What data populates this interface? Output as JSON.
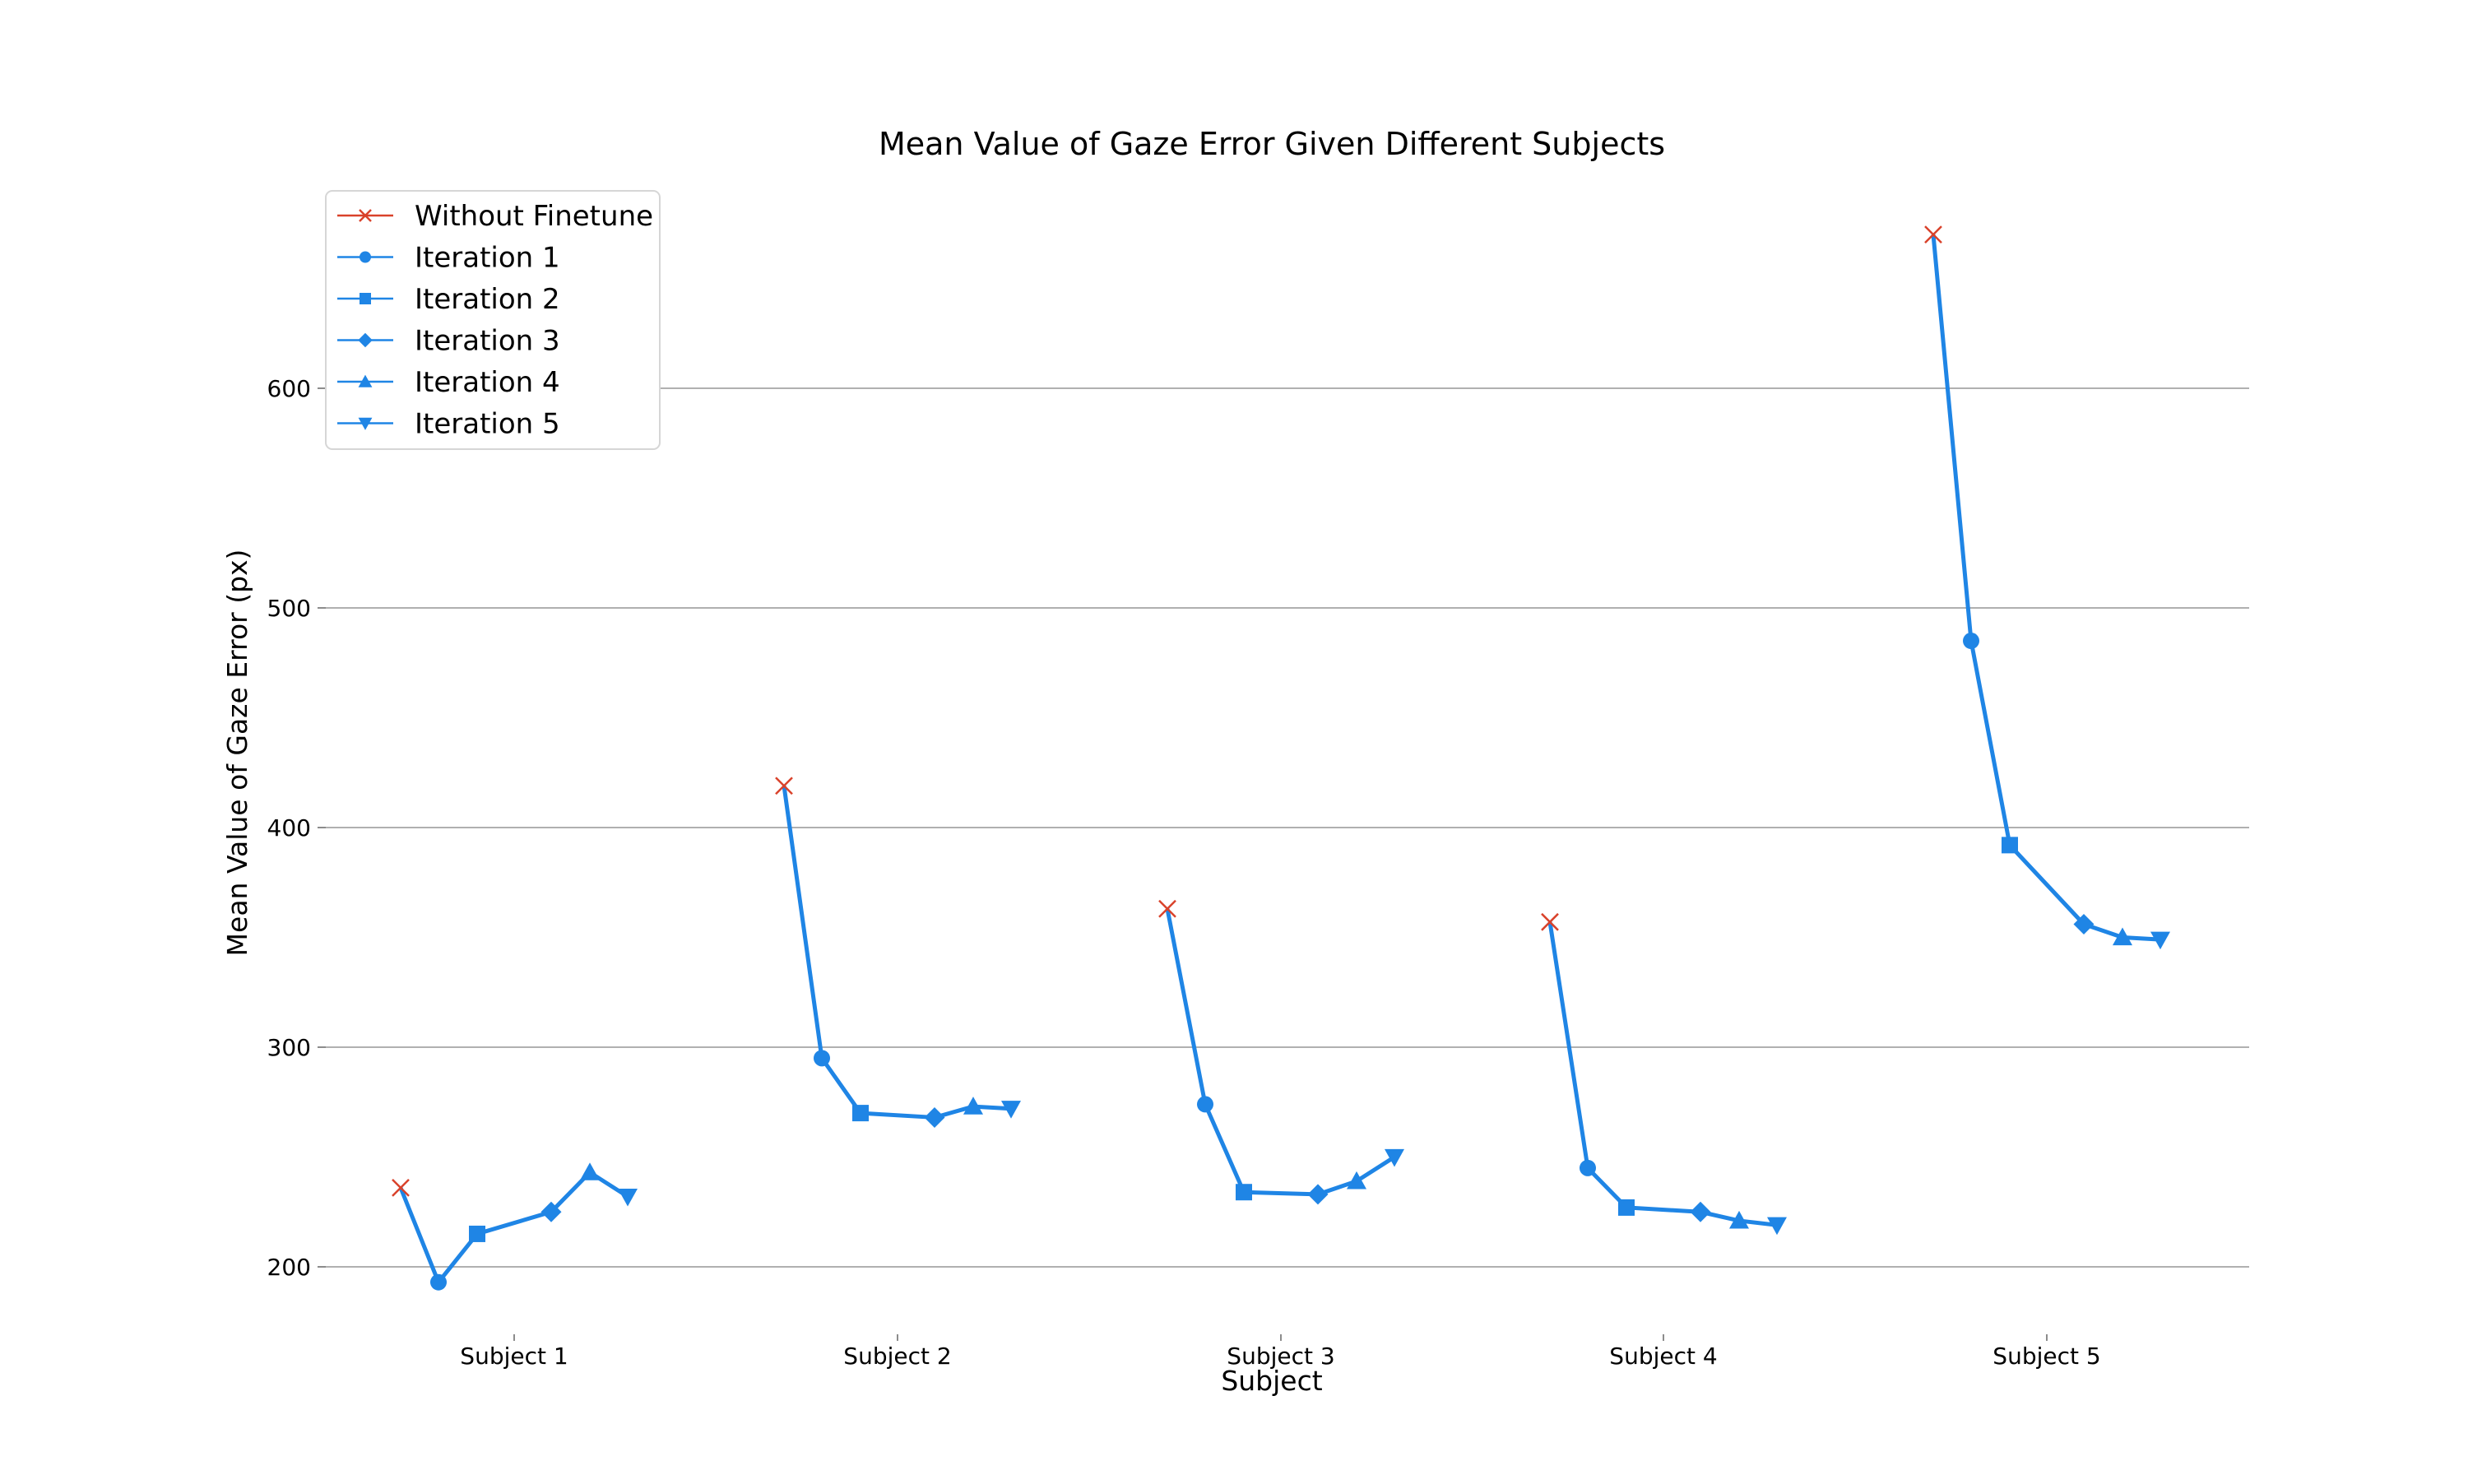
{
  "chart_data": {
    "type": "line",
    "title": "Mean Value of Gaze Error Given Different Subjects",
    "xlabel": "Subject",
    "ylabel": "Mean Value of Gaze Error (px)",
    "categories": [
      "Subject 1",
      "Subject 2",
      "Subject 3",
      "Subject 4",
      "Subject 5"
    ],
    "y_ticks": [
      200,
      300,
      400,
      500,
      600
    ],
    "ylim": [
      180,
      690
    ],
    "grid": "horizontal",
    "legend_position": "top-left",
    "series": [
      {
        "name": "Without Finetune",
        "marker": "x",
        "values": [
          236,
          419,
          363,
          357,
          670
        ]
      },
      {
        "name": "Iteration 1",
        "marker": "circle",
        "values": [
          193,
          295,
          274,
          245,
          485
        ]
      },
      {
        "name": "Iteration 2",
        "marker": "square",
        "values": [
          215,
          270,
          234,
          227,
          392
        ]
      },
      {
        "name": "Iteration 3",
        "marker": "diamond",
        "values": [
          225,
          268,
          233,
          225,
          356
        ]
      },
      {
        "name": "Iteration 4",
        "marker": "triangle-up",
        "values": [
          243,
          273,
          239,
          221,
          350
        ]
      },
      {
        "name": "Iteration 5",
        "marker": "triangle-down",
        "values": [
          232,
          272,
          250,
          219,
          349
        ]
      }
    ],
    "colors": {
      "line": "#1f85e5",
      "without_finetune": "#d9422b",
      "grid": "#b0b0b0"
    }
  }
}
